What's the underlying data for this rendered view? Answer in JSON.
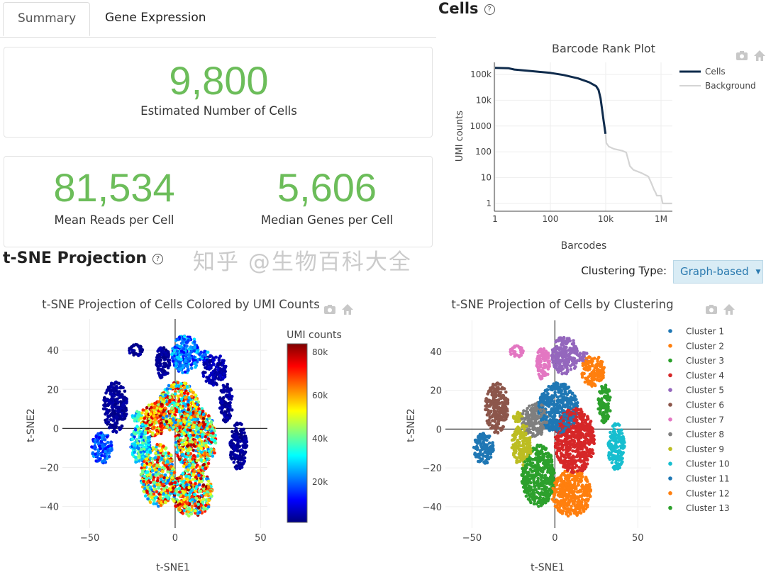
{
  "tabs": [
    {
      "label": "Summary",
      "active": true
    },
    {
      "label": "Gene Expression",
      "active": false
    }
  ],
  "summary": {
    "cells_value": "9,800",
    "cells_label": "Estimated Number of Cells",
    "reads_value": "81,534",
    "reads_label": "Mean Reads per Cell",
    "genes_value": "5,606",
    "genes_label": "Median Genes per Cell",
    "value_color": "#6cbd5a"
  },
  "cells_section": {
    "title": "Cells",
    "help_icon": "question-circle-icon"
  },
  "tsne_section": {
    "title": "t-SNE Projection",
    "help_icon": "question-circle-icon",
    "clustering_label": "Clustering Type:",
    "clustering_value": "Graph-based"
  },
  "modebar": {
    "icons": [
      "camera-icon",
      "home-icon"
    ]
  },
  "watermark": "知乎 @生物百科大全",
  "chart_data": [
    {
      "type": "line",
      "title": "Barcode Rank Plot",
      "xlabel": "Barcodes",
      "ylabel": "UMI counts",
      "xscale": "log",
      "yscale": "log",
      "xticks": [
        {
          "v": 1,
          "label": "1"
        },
        {
          "v": 100,
          "label": "100"
        },
        {
          "v": 10000,
          "label": "10k"
        },
        {
          "v": 1000000,
          "label": "1M"
        }
      ],
      "yticks": [
        {
          "v": 1,
          "label": "1"
        },
        {
          "v": 10,
          "label": "10"
        },
        {
          "v": 100,
          "label": "100"
        },
        {
          "v": 1000,
          "label": "1000"
        },
        {
          "v": 10000,
          "label": "10k"
        },
        {
          "v": 100000,
          "label": "100k"
        }
      ],
      "legend": "top-right",
      "series": [
        {
          "name": "Cells",
          "color": "#0f2b4c",
          "points": [
            [
              1,
              180000
            ],
            [
              3,
              175000
            ],
            [
              5,
              155000
            ],
            [
              20,
              135000
            ],
            [
              100,
              115000
            ],
            [
              300,
              95000
            ],
            [
              1000,
              70000
            ],
            [
              2500,
              50000
            ],
            [
              4500,
              35000
            ],
            [
              5500,
              25000
            ],
            [
              6500,
              12000
            ],
            [
              7500,
              4000
            ],
            [
              8500,
              1500
            ],
            [
              9800,
              500
            ]
          ]
        },
        {
          "name": "Background",
          "color": "#d4d4d4",
          "points": [
            [
              9800,
              500
            ],
            [
              10500,
              220
            ],
            [
              13000,
              160
            ],
            [
              20000,
              130
            ],
            [
              40000,
              110
            ],
            [
              55000,
              95
            ],
            [
              65000,
              50
            ],
            [
              75000,
              28
            ],
            [
              100000,
              20
            ],
            [
              200000,
              15
            ],
            [
              350000,
              11
            ],
            [
              450000,
              6
            ],
            [
              550000,
              3.5
            ],
            [
              650000,
              2.5
            ],
            [
              700000,
              2
            ],
            [
              1000000,
              2
            ],
            [
              1150000,
              1
            ],
            [
              2500000,
              1
            ]
          ]
        }
      ]
    },
    {
      "type": "scatter",
      "title": "t-SNE Projection of Cells Colored by UMI Counts",
      "xlabel": "t-SNE1",
      "ylabel": "t-SNE2",
      "xticks": [
        -50,
        0,
        50
      ],
      "yticks": [
        -40,
        -20,
        0,
        20,
        40
      ],
      "xlim": [
        -66,
        54
      ],
      "ylim": [
        -51,
        56
      ],
      "grid": true,
      "colorbar": {
        "title": "UMI counts",
        "colorscale": "jet",
        "range": [
          1000,
          84000
        ],
        "ticks": [
          {
            "v": 20000,
            "label": "20k"
          },
          {
            "v": 40000,
            "label": "40k"
          },
          {
            "v": 60000,
            "label": "60k"
          },
          {
            "v": 80000,
            "label": "80k"
          }
        ]
      },
      "umi_by_cluster": [
        [
          20000,
          80000
        ],
        [
          2000,
          8000
        ],
        [
          20000,
          80000
        ],
        [
          20000,
          84000
        ],
        [
          10000,
          30000
        ],
        [
          1000,
          5000
        ],
        [
          1000,
          5000
        ],
        [
          45000,
          84000
        ],
        [
          15000,
          45000
        ],
        [
          1000,
          5000
        ],
        [
          10000,
          25000
        ],
        [
          20000,
          84000
        ],
        [
          1000,
          6000
        ]
      ]
    },
    {
      "type": "scatter",
      "title": "t-SNE Projection of Cells by Clustering",
      "xlabel": "t-SNE1",
      "ylabel": "t-SNE2",
      "xticks": [
        -50,
        0,
        50
      ],
      "yticks": [
        -40,
        -20,
        0,
        20,
        40
      ],
      "xlim": [
        -66,
        58
      ],
      "ylim": [
        -51,
        56
      ],
      "grid": true,
      "legend": "right",
      "clusters": [
        {
          "name": "Cluster 1",
          "color": "#1f77b4",
          "blobs": [
            [
              2,
              11,
              12,
              13
            ]
          ]
        },
        {
          "name": "Cluster 2",
          "color": "#ff7f0e",
          "blobs": [
            [
              23,
              30,
              7,
              8
            ]
          ]
        },
        {
          "name": "Cluster 3",
          "color": "#2ca02c",
          "blobs": [
            [
              -10,
              -24,
              10,
              16
            ]
          ]
        },
        {
          "name": "Cluster 4",
          "color": "#d62728",
          "blobs": [
            [
              12,
              -6,
              12,
              17
            ]
          ]
        },
        {
          "name": "Cluster 5",
          "color": "#9467bd",
          "blobs": [
            [
              6,
              38,
              8,
              10
            ],
            [
              17,
              37,
              3,
              3
            ]
          ]
        },
        {
          "name": "Cluster 6",
          "color": "#8c564b",
          "blobs": [
            [
              -35,
              11,
              7,
              13
            ]
          ]
        },
        {
          "name": "Cluster 7",
          "color": "#e377c2",
          "blobs": [
            [
              -23,
              40,
              4,
              3
            ],
            [
              -7,
              34,
              4,
              9
            ]
          ]
        },
        {
          "name": "Cluster 8",
          "color": "#7f7f7f",
          "blobs": [
            [
              -12,
              5,
              8,
              9
            ]
          ]
        },
        {
          "name": "Cluster 9",
          "color": "#bcbd22",
          "blobs": [
            [
              -20,
              -8,
              6,
              11
            ],
            [
              -22,
              6,
              3,
              3
            ]
          ]
        },
        {
          "name": "Cluster 10",
          "color": "#17becf",
          "blobs": [
            [
              37,
              -9,
              5,
              12
            ]
          ]
        },
        {
          "name": "Cluster 11",
          "color": "#1f77b4",
          "blobs": [
            [
              -43,
              -10,
              6,
              8
            ]
          ]
        },
        {
          "name": "Cluster 12",
          "color": "#ff7f0e",
          "blobs": [
            [
              10,
              -33,
              12,
              12
            ]
          ]
        },
        {
          "name": "Cluster 13",
          "color": "#2ca02c",
          "blobs": [
            [
              30,
              13,
              4,
              10
            ]
          ]
        }
      ]
    }
  ]
}
